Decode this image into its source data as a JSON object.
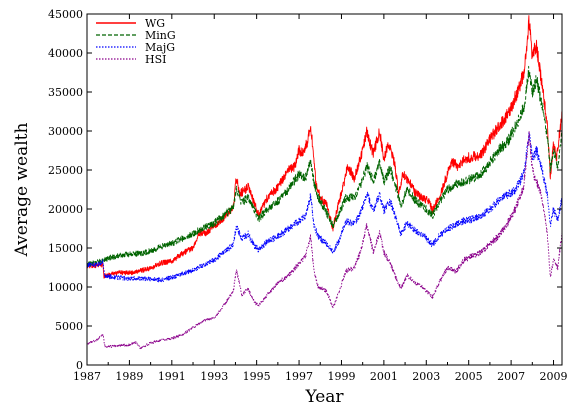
{
  "chart_data": {
    "type": "line",
    "title": "",
    "xlabel": "Year",
    "ylabel": "Average wealth",
    "xlim": [
      1987,
      2009.4
    ],
    "ylim": [
      0,
      45000
    ],
    "x_ticks": [
      1987,
      1989,
      1991,
      1993,
      1995,
      1997,
      1999,
      2001,
      2003,
      2005,
      2007,
      2009
    ],
    "y_ticks": [
      0,
      5000,
      10000,
      15000,
      20000,
      25000,
      30000,
      35000,
      40000,
      45000
    ],
    "legend_position": "top-left",
    "grid": false,
    "series": [
      {
        "name": "WG",
        "color": "#ff0000",
        "style": "solid",
        "points": [
          [
            1987.0,
            12700
          ],
          [
            1987.5,
            12800
          ],
          [
            1987.75,
            12900
          ],
          [
            1987.8,
            11400
          ],
          [
            1988.0,
            11500
          ],
          [
            1988.5,
            11900
          ],
          [
            1989.0,
            11800
          ],
          [
            1989.5,
            12100
          ],
          [
            1990.0,
            12400
          ],
          [
            1990.5,
            13100
          ],
          [
            1991.0,
            13300
          ],
          [
            1991.5,
            14300
          ],
          [
            1992.0,
            15000
          ],
          [
            1992.3,
            17000
          ],
          [
            1992.6,
            16800
          ],
          [
            1993.0,
            17800
          ],
          [
            1993.5,
            19000
          ],
          [
            1993.9,
            20300
          ],
          [
            1994.05,
            24200
          ],
          [
            1994.2,
            21900
          ],
          [
            1994.6,
            22800
          ],
          [
            1994.9,
            20600
          ],
          [
            1995.1,
            19300
          ],
          [
            1995.5,
            21400
          ],
          [
            1996.0,
            22800
          ],
          [
            1996.5,
            25000
          ],
          [
            1996.8,
            25500
          ],
          [
            1997.0,
            27500
          ],
          [
            1997.2,
            27100
          ],
          [
            1997.4,
            28700
          ],
          [
            1997.55,
            30500
          ],
          [
            1997.7,
            26700
          ],
          [
            1997.8,
            23000
          ],
          [
            1998.0,
            21500
          ],
          [
            1998.3,
            20500
          ],
          [
            1998.6,
            17500
          ],
          [
            1998.8,
            20000
          ],
          [
            1999.0,
            22000
          ],
          [
            1999.3,
            25500
          ],
          [
            1999.6,
            24000
          ],
          [
            1999.9,
            26500
          ],
          [
            2000.2,
            29900
          ],
          [
            2000.5,
            27000
          ],
          [
            2000.8,
            30000
          ],
          [
            2001.0,
            26500
          ],
          [
            2001.2,
            28400
          ],
          [
            2001.5,
            26000
          ],
          [
            2001.7,
            22000
          ],
          [
            2001.9,
            24500
          ],
          [
            2002.2,
            23500
          ],
          [
            2002.5,
            22000
          ],
          [
            2002.8,
            21500
          ],
          [
            2003.1,
            21000
          ],
          [
            2003.3,
            19800
          ],
          [
            2003.6,
            21500
          ],
          [
            2004.0,
            24500
          ],
          [
            2004.2,
            26000
          ],
          [
            2004.5,
            25500
          ],
          [
            2004.8,
            26500
          ],
          [
            2005.2,
            26700
          ],
          [
            2005.6,
            27000
          ],
          [
            2006.0,
            29000
          ],
          [
            2006.4,
            30500
          ],
          [
            2006.7,
            31500
          ],
          [
            2007.0,
            33000
          ],
          [
            2007.3,
            35000
          ],
          [
            2007.6,
            37500
          ],
          [
            2007.85,
            44200
          ],
          [
            2008.0,
            39500
          ],
          [
            2008.2,
            41000
          ],
          [
            2008.45,
            36000
          ],
          [
            2008.7,
            31000
          ],
          [
            2008.85,
            24200
          ],
          [
            2009.0,
            28500
          ],
          [
            2009.15,
            26500
          ],
          [
            2009.4,
            32500
          ]
        ]
      },
      {
        "name": "MinG",
        "color": "#006400",
        "style": "dashed",
        "points": [
          [
            1987.0,
            12900
          ],
          [
            1987.5,
            13200
          ],
          [
            1987.75,
            13400
          ],
          [
            1988.0,
            13700
          ],
          [
            1988.5,
            14000
          ],
          [
            1989.0,
            14200
          ],
          [
            1989.5,
            14300
          ],
          [
            1990.0,
            14600
          ],
          [
            1990.5,
            15200
          ],
          [
            1991.0,
            15600
          ],
          [
            1991.5,
            16200
          ],
          [
            1992.0,
            16800
          ],
          [
            1992.5,
            17600
          ],
          [
            1993.0,
            18200
          ],
          [
            1993.5,
            19300
          ],
          [
            1993.9,
            20200
          ],
          [
            1994.05,
            22500
          ],
          [
            1994.3,
            20800
          ],
          [
            1994.6,
            21500
          ],
          [
            1994.9,
            19800
          ],
          [
            1995.1,
            18700
          ],
          [
            1995.5,
            20000
          ],
          [
            1996.0,
            21000
          ],
          [
            1996.5,
            22500
          ],
          [
            1997.0,
            24500
          ],
          [
            1997.3,
            24000
          ],
          [
            1997.55,
            26000
          ],
          [
            1997.7,
            23500
          ],
          [
            1997.9,
            21500
          ],
          [
            1998.3,
            19500
          ],
          [
            1998.6,
            17800
          ],
          [
            1998.9,
            19500
          ],
          [
            1999.2,
            21500
          ],
          [
            1999.6,
            21500
          ],
          [
            1999.9,
            23000
          ],
          [
            2000.2,
            25500
          ],
          [
            2000.5,
            23500
          ],
          [
            2000.8,
            26000
          ],
          [
            2001.0,
            23500
          ],
          [
            2001.3,
            25200
          ],
          [
            2001.6,
            22500
          ],
          [
            2001.8,
            20500
          ],
          [
            2002.1,
            22500
          ],
          [
            2002.5,
            21000
          ],
          [
            2002.9,
            20200
          ],
          [
            2003.3,
            19200
          ],
          [
            2003.6,
            20800
          ],
          [
            2004.0,
            22500
          ],
          [
            2004.4,
            23200
          ],
          [
            2004.8,
            23500
          ],
          [
            2005.2,
            24000
          ],
          [
            2005.6,
            24500
          ],
          [
            2006.0,
            26000
          ],
          [
            2006.4,
            27500
          ],
          [
            2006.8,
            28500
          ],
          [
            2007.2,
            30500
          ],
          [
            2007.6,
            33000
          ],
          [
            2007.85,
            37800
          ],
          [
            2008.0,
            35000
          ],
          [
            2008.2,
            36500
          ],
          [
            2008.45,
            33500
          ],
          [
            2008.7,
            29500
          ],
          [
            2008.85,
            25000
          ],
          [
            2009.0,
            27500
          ],
          [
            2009.2,
            25500
          ],
          [
            2009.4,
            29500
          ]
        ]
      },
      {
        "name": "MajG",
        "color": "#0000ff",
        "style": "dotted",
        "points": [
          [
            1987.0,
            12800
          ],
          [
            1987.5,
            12900
          ],
          [
            1987.75,
            13200
          ],
          [
            1987.85,
            11400
          ],
          [
            1988.5,
            11200
          ],
          [
            1989.0,
            11100
          ],
          [
            1989.5,
            11100
          ],
          [
            1990.0,
            11000
          ],
          [
            1990.5,
            10900
          ],
          [
            1991.0,
            11200
          ],
          [
            1991.5,
            11700
          ],
          [
            1992.0,
            12200
          ],
          [
            1992.5,
            12800
          ],
          [
            1993.0,
            13500
          ],
          [
            1993.5,
            14500
          ],
          [
            1993.9,
            15500
          ],
          [
            1994.05,
            17800
          ],
          [
            1994.3,
            16200
          ],
          [
            1994.6,
            16800
          ],
          [
            1994.9,
            15200
          ],
          [
            1995.1,
            14800
          ],
          [
            1995.5,
            15800
          ],
          [
            1996.0,
            16500
          ],
          [
            1996.5,
            17500
          ],
          [
            1997.0,
            18500
          ],
          [
            1997.3,
            19000
          ],
          [
            1997.55,
            21800
          ],
          [
            1997.7,
            18000
          ],
          [
            1997.9,
            16500
          ],
          [
            1998.3,
            15500
          ],
          [
            1998.6,
            14500
          ],
          [
            1998.9,
            16000
          ],
          [
            1999.2,
            18500
          ],
          [
            1999.6,
            18000
          ],
          [
            1999.9,
            19500
          ],
          [
            2000.2,
            22000
          ],
          [
            2000.5,
            19800
          ],
          [
            2000.8,
            21800
          ],
          [
            2001.0,
            19800
          ],
          [
            2001.3,
            21000
          ],
          [
            2001.6,
            18500
          ],
          [
            2001.8,
            16800
          ],
          [
            2002.1,
            18200
          ],
          [
            2002.5,
            17200
          ],
          [
            2002.9,
            16500
          ],
          [
            2003.3,
            15400
          ],
          [
            2003.6,
            16500
          ],
          [
            2004.0,
            17500
          ],
          [
            2004.4,
            18000
          ],
          [
            2004.8,
            18500
          ],
          [
            2005.2,
            18700
          ],
          [
            2005.6,
            19000
          ],
          [
            2006.0,
            20000
          ],
          [
            2006.4,
            21000
          ],
          [
            2006.8,
            21800
          ],
          [
            2007.2,
            22500
          ],
          [
            2007.6,
            24500
          ],
          [
            2007.85,
            29500
          ],
          [
            2008.0,
            26500
          ],
          [
            2008.2,
            27500
          ],
          [
            2008.45,
            25000
          ],
          [
            2008.7,
            22000
          ],
          [
            2008.85,
            18000
          ],
          [
            2009.0,
            20000
          ],
          [
            2009.2,
            18500
          ],
          [
            2009.4,
            21500
          ]
        ]
      },
      {
        "name": "HSI",
        "color": "#8b008b",
        "style": "dotted",
        "points": [
          [
            1987.0,
            2700
          ],
          [
            1987.3,
            3000
          ],
          [
            1987.5,
            3300
          ],
          [
            1987.75,
            3900
          ],
          [
            1987.85,
            2300
          ],
          [
            1988.2,
            2400
          ],
          [
            1988.6,
            2500
          ],
          [
            1989.0,
            2600
          ],
          [
            1989.3,
            2900
          ],
          [
            1989.5,
            2200
          ],
          [
            1990.0,
            2800
          ],
          [
            1990.5,
            3200
          ],
          [
            1991.0,
            3400
          ],
          [
            1991.5,
            3900
          ],
          [
            1992.0,
            4800
          ],
          [
            1992.5,
            5700
          ],
          [
            1993.0,
            6000
          ],
          [
            1993.5,
            7800
          ],
          [
            1993.9,
            9500
          ],
          [
            1994.05,
            12200
          ],
          [
            1994.3,
            9000
          ],
          [
            1994.6,
            9800
          ],
          [
            1994.9,
            8000
          ],
          [
            1995.1,
            7600
          ],
          [
            1995.5,
            9000
          ],
          [
            1996.0,
            10500
          ],
          [
            1996.5,
            11500
          ],
          [
            1997.0,
            13000
          ],
          [
            1997.3,
            14000
          ],
          [
            1997.55,
            16500
          ],
          [
            1997.7,
            12000
          ],
          [
            1997.9,
            10000
          ],
          [
            1998.3,
            9500
          ],
          [
            1998.6,
            7300
          ],
          [
            1998.9,
            9500
          ],
          [
            1999.2,
            12000
          ],
          [
            1999.6,
            12500
          ],
          [
            1999.9,
            14500
          ],
          [
            2000.2,
            18000
          ],
          [
            2000.5,
            14500
          ],
          [
            2000.8,
            17000
          ],
          [
            2001.0,
            14500
          ],
          [
            2001.3,
            13000
          ],
          [
            2001.6,
            11000
          ],
          [
            2001.8,
            9800
          ],
          [
            2002.1,
            11500
          ],
          [
            2002.5,
            10500
          ],
          [
            2002.9,
            9800
          ],
          [
            2003.3,
            8700
          ],
          [
            2003.6,
            10500
          ],
          [
            2004.0,
            12500
          ],
          [
            2004.4,
            12000
          ],
          [
            2004.8,
            13500
          ],
          [
            2005.2,
            14000
          ],
          [
            2005.6,
            14500
          ],
          [
            2006.0,
            15500
          ],
          [
            2006.4,
            16500
          ],
          [
            2006.8,
            18000
          ],
          [
            2007.2,
            20000
          ],
          [
            2007.6,
            23000
          ],
          [
            2007.85,
            29800
          ],
          [
            2008.0,
            25000
          ],
          [
            2008.2,
            23500
          ],
          [
            2008.45,
            21500
          ],
          [
            2008.7,
            17000
          ],
          [
            2008.85,
            11200
          ],
          [
            2009.0,
            13500
          ],
          [
            2009.2,
            12500
          ],
          [
            2009.4,
            17000
          ]
        ]
      }
    ]
  }
}
